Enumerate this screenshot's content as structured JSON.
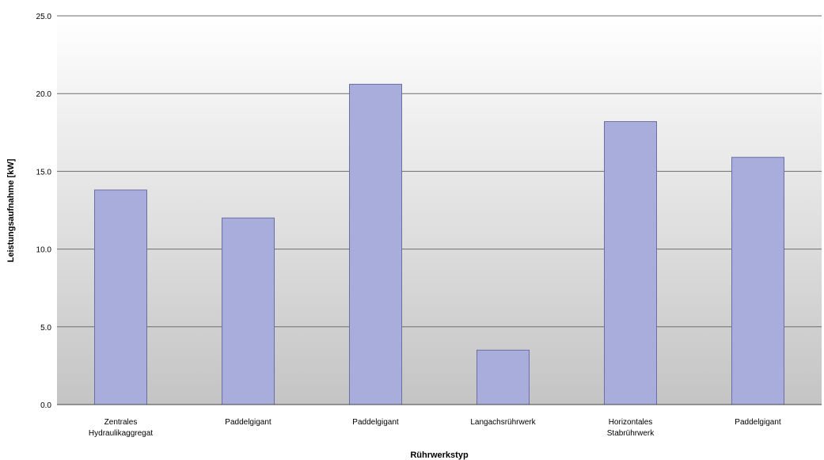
{
  "chart_data": {
    "type": "bar",
    "categories": [
      [
        "Zentrales",
        "Hydraulikaggregat"
      ],
      [
        "Paddelgigant"
      ],
      [
        "Paddelgigant"
      ],
      [
        "Langachsrührwerk"
      ],
      [
        "Horizontales",
        "Stabrührwerk"
      ],
      [
        "Paddelgigant"
      ]
    ],
    "values": [
      13.8,
      12.0,
      20.6,
      3.5,
      18.2,
      15.9
    ],
    "yticks": [
      "0.0",
      "5.0",
      "10.0",
      "15.0",
      "20.0",
      "25.0"
    ],
    "ylim": [
      0,
      25
    ],
    "xlabel": "Rührwerkstyp",
    "ylabel": "Leistungsaufnahme [kW]",
    "grid": true,
    "colors": {
      "bar_fill": "#a9addb",
      "bar_stroke": "#6a6fa6",
      "bg_top": "#ffffff",
      "bg_bottom": "#c4c4c4",
      "grid": "#6e6e6e"
    }
  }
}
